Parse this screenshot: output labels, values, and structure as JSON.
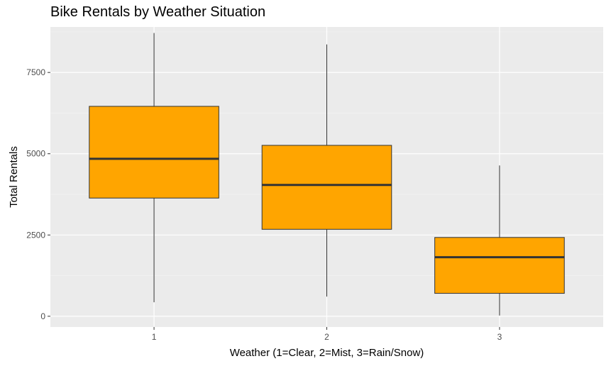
{
  "chart_data": {
    "type": "boxplot",
    "title": "Bike Rentals by Weather Situation",
    "xlabel": "Weather (1=Clear, 2=Mist, 3=Rain/Snow)",
    "ylabel": "Total Rentals",
    "categories": [
      "1",
      "2",
      "3"
    ],
    "boxes": [
      {
        "category": "1",
        "min": 431,
        "q1": 3636,
        "median": 4844,
        "q3": 6458,
        "max": 8714
      },
      {
        "category": "2",
        "min": 605,
        "q1": 2675,
        "median": 4040,
        "q3": 5258,
        "max": 8362
      },
      {
        "category": "3",
        "min": 22,
        "q1": 705,
        "median": 1817,
        "q3": 2424,
        "max": 4639
      }
    ],
    "ylim": [
      -330,
      8900
    ],
    "yticks": [
      0,
      2500,
      5000,
      7500
    ],
    "ytick_labels": [
      "0",
      "2500",
      "5000",
      "7500"
    ],
    "grid": true,
    "colors": {
      "box_fill": "#FFA500",
      "box_outline": "#333333",
      "median_line": "#333333",
      "panel_background": "#EBEBEB",
      "grid_major": "#FFFFFF",
      "grid_minor": "#F5F5F5"
    }
  }
}
